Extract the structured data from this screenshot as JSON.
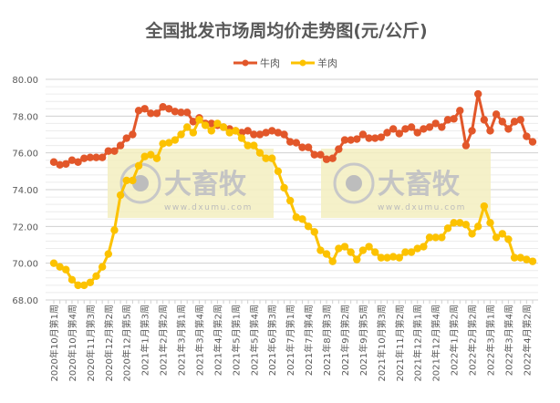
{
  "chart_data": {
    "type": "line",
    "title": "全国批发市场周均价走势图(元/公斤)",
    "xlabel": "",
    "ylabel": "",
    "ylim": [
      68,
      80
    ],
    "yticks": [
      "68.00",
      "70.00",
      "72.00",
      "74.00",
      "76.00",
      "78.00",
      "80.00"
    ],
    "grid": true,
    "legend_position": "top-center",
    "x_tick_labels": [
      "2020年10月第1周",
      "2020年10月第4周",
      "2020年11月第3周",
      "2020年12月第2周",
      "2020年12月第5周",
      "2021年1月第3周",
      "2021年2月第2周",
      "2021年3月第1周",
      "2021年3月第4周",
      "2021年4月第2周",
      "2021年5月第1周",
      "2021年5月第4周",
      "2021年6月第3周",
      "2021年7月第1周",
      "2021年7月第4周",
      "2021年8月第3周",
      "2021年9月第2周",
      "2021年9月第5周",
      "2021年10月第3周",
      "2021年11月第2周",
      "2021年12月第1周",
      "2021年12月第4周",
      "2022年1月第2周",
      "2022年2月第2周",
      "2022年3月第1周",
      "2022年3月第4周",
      "2022年4月第2周"
    ],
    "x_tick_every": 3,
    "series": [
      {
        "name": "牛肉",
        "color": "#e2572a",
        "values": [
          75.5,
          75.35,
          75.4,
          75.6,
          75.5,
          75.7,
          75.75,
          75.75,
          75.75,
          76.1,
          76.1,
          76.4,
          76.8,
          77.0,
          78.3,
          78.4,
          78.15,
          78.15,
          78.5,
          78.4,
          78.25,
          78.2,
          78.2,
          77.7,
          77.9,
          77.6,
          77.6,
          77.5,
          77.4,
          77.3,
          77.2,
          77.1,
          77.2,
          77.0,
          77.0,
          77.1,
          77.2,
          77.1,
          77.0,
          76.6,
          76.55,
          76.3,
          76.3,
          75.9,
          75.9,
          75.65,
          75.7,
          76.2,
          76.7,
          76.7,
          76.75,
          77.0,
          76.8,
          76.8,
          76.85,
          77.1,
          77.3,
          77.05,
          77.3,
          77.4,
          77.1,
          77.3,
          77.4,
          77.6,
          77.4,
          77.8,
          77.85,
          78.3,
          76.4,
          77.2,
          79.2,
          77.8,
          77.2,
          78.1,
          77.7,
          77.3,
          77.7,
          77.8,
          76.9,
          76.6
        ]
      },
      {
        "name": "羊肉",
        "color": "#fcc200",
        "values": [
          70.0,
          69.8,
          69.65,
          69.1,
          68.8,
          68.8,
          68.95,
          69.3,
          69.8,
          70.5,
          71.8,
          73.7,
          74.5,
          74.5,
          75.3,
          75.8,
          75.9,
          75.7,
          76.5,
          76.55,
          76.7,
          77.0,
          77.4,
          77.1,
          77.8,
          77.5,
          77.2,
          77.6,
          77.4,
          77.1,
          77.2,
          76.8,
          76.4,
          76.4,
          76.0,
          75.7,
          75.7,
          75.0,
          74.1,
          73.4,
          72.5,
          72.4,
          72.0,
          71.7,
          70.7,
          70.5,
          70.1,
          70.8,
          70.9,
          70.6,
          70.2,
          70.7,
          70.9,
          70.6,
          70.3,
          70.3,
          70.35,
          70.3,
          70.6,
          70.6,
          70.8,
          70.9,
          71.4,
          71.4,
          71.4,
          71.9,
          72.2,
          72.2,
          72.1,
          71.6,
          72.0,
          73.1,
          72.2,
          71.4,
          71.6,
          71.3,
          70.3,
          70.3,
          70.2,
          70.1
        ]
      }
    ],
    "watermark": {
      "brand": "大畜牧",
      "site": "www.dxumu.com"
    }
  }
}
